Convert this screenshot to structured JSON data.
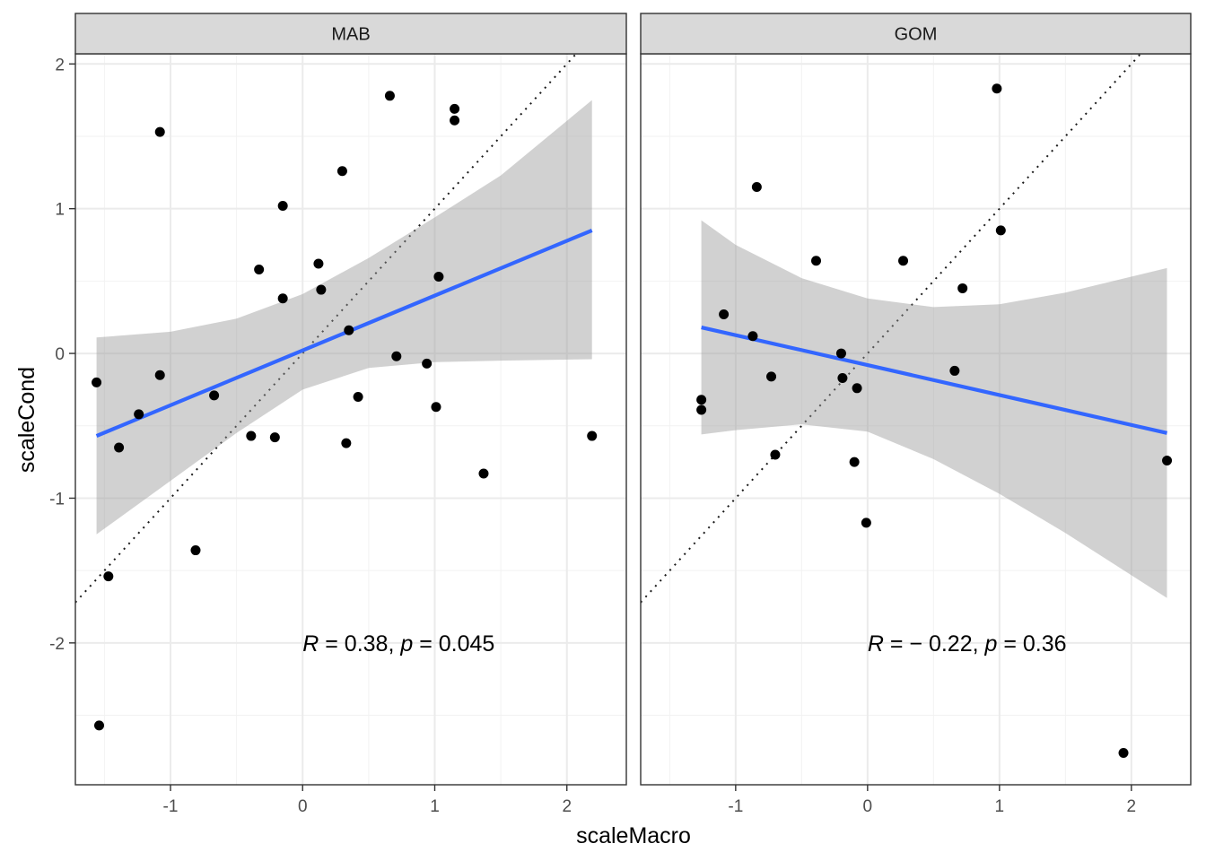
{
  "chart_data": {
    "type": "scatter",
    "xlabel": "scaleMacro",
    "ylabel": "scaleCond",
    "xlim": [
      -1.72,
      2.45
    ],
    "ylim": [
      -2.98,
      2.07
    ],
    "x_ticks": [
      -1,
      0,
      1,
      2
    ],
    "x_tick_labels": [
      "-1",
      "0",
      "1",
      "2"
    ],
    "y_ticks": [
      -2,
      -1,
      0,
      1,
      2
    ],
    "y_tick_labels": [
      "-2",
      "-1",
      "0",
      "1",
      "2"
    ],
    "grid": true,
    "reference_line": "identity (y = x), dotted",
    "colors": {
      "points": "#000000",
      "fit_line": "#3366FF",
      "ribbon": "#999999",
      "strip": "#d9d9d9"
    },
    "panels": [
      {
        "strip": "MAB",
        "annotation": {
          "R_label": "R",
          "r_value": " = 0.38, ",
          "p_label": "p",
          "p_value": " = 0.045",
          "x": 0.0,
          "y": -2.0
        },
        "points": [
          [
            -1.56,
            -0.2
          ],
          [
            -1.54,
            -2.57
          ],
          [
            -1.47,
            -1.54
          ],
          [
            -1.39,
            -0.65
          ],
          [
            -1.24,
            -0.42
          ],
          [
            -1.08,
            1.53
          ],
          [
            -1.08,
            -0.15
          ],
          [
            -0.81,
            -1.36
          ],
          [
            -0.67,
            -0.29
          ],
          [
            -0.39,
            -0.57
          ],
          [
            -0.33,
            0.58
          ],
          [
            -0.21,
            -0.58
          ],
          [
            -0.15,
            1.02
          ],
          [
            -0.15,
            0.38
          ],
          [
            0.12,
            0.62
          ],
          [
            0.14,
            0.44
          ],
          [
            0.3,
            1.26
          ],
          [
            0.33,
            -0.62
          ],
          [
            0.35,
            0.16
          ],
          [
            0.42,
            -0.3
          ],
          [
            0.66,
            1.78
          ],
          [
            0.71,
            -0.02
          ],
          [
            0.94,
            -0.07
          ],
          [
            1.01,
            -0.37
          ],
          [
            1.03,
            0.53
          ],
          [
            1.15,
            1.69
          ],
          [
            1.15,
            1.61
          ],
          [
            1.37,
            -0.83
          ],
          [
            2.19,
            -0.57
          ]
        ],
        "fit": {
          "x_range": [
            -1.56,
            2.19
          ],
          "y_at_start": -0.57,
          "y_at_end": 0.85
        },
        "ribbon": {
          "x": [
            -1.56,
            -1.0,
            -0.5,
            0.0,
            0.5,
            1.0,
            1.5,
            2.19
          ],
          "upper": [
            0.11,
            0.15,
            0.24,
            0.41,
            0.66,
            0.94,
            1.23,
            1.75
          ],
          "lower": [
            -1.25,
            -0.88,
            -0.55,
            -0.25,
            -0.1,
            -0.06,
            -0.05,
            -0.04
          ]
        }
      },
      {
        "strip": "GOM",
        "annotation": {
          "R_label": "R",
          "r_value": " = − 0.22, ",
          "p_label": "p",
          "p_value": " = 0.36",
          "x": 0.0,
          "y": -2.0
        },
        "points": [
          [
            -1.26,
            -0.32
          ],
          [
            -1.26,
            -0.39
          ],
          [
            -1.09,
            0.27
          ],
          [
            -0.87,
            0.12
          ],
          [
            -0.84,
            1.15
          ],
          [
            -0.73,
            -0.16
          ],
          [
            -0.7,
            -0.7
          ],
          [
            -0.39,
            0.64
          ],
          [
            -0.2,
            0.0
          ],
          [
            -0.19,
            -0.17
          ],
          [
            -0.1,
            -0.75
          ],
          [
            -0.08,
            -0.24
          ],
          [
            -0.01,
            -1.17
          ],
          [
            0.27,
            0.64
          ],
          [
            0.66,
            -0.12
          ],
          [
            0.72,
            0.45
          ],
          [
            0.98,
            1.83
          ],
          [
            1.01,
            0.85
          ],
          [
            1.94,
            -2.76
          ],
          [
            2.27,
            -0.74
          ]
        ],
        "fit": {
          "x_range": [
            -1.26,
            2.27
          ],
          "y_at_start": 0.18,
          "y_at_end": -0.55
        },
        "ribbon": {
          "x": [
            -1.26,
            -1.0,
            -0.5,
            0.0,
            0.5,
            1.0,
            1.5,
            2.27
          ],
          "upper": [
            0.92,
            0.75,
            0.52,
            0.38,
            0.32,
            0.34,
            0.42,
            0.59
          ],
          "lower": [
            -0.56,
            -0.53,
            -0.49,
            -0.54,
            -0.73,
            -0.97,
            -1.24,
            -1.69
          ]
        }
      }
    ]
  }
}
